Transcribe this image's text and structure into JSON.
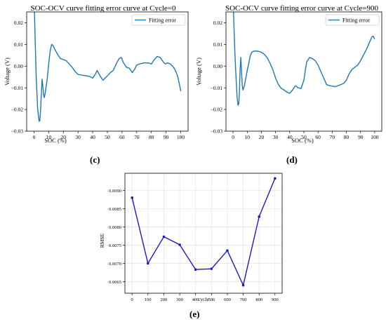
{
  "panels": {
    "c": "(c)",
    "d": "(d)",
    "e": "(e)"
  },
  "chart_data": [
    {
      "id": "c",
      "type": "line",
      "title": "SOC-OCV curve fitting error curve at Cycle=0",
      "xlabel": "SOC (%)",
      "ylabel": "Voltage (V)",
      "xlim": [
        -5,
        105
      ],
      "ylim": [
        -0.03,
        0.025
      ],
      "xticks": [
        0,
        10,
        20,
        30,
        40,
        50,
        60,
        70,
        80,
        90,
        100
      ],
      "yticks": [
        -0.03,
        -0.02,
        -0.01,
        0.0,
        0.01,
        0.02
      ],
      "ytick_labels": [
        "−0.03",
        "−0.02",
        "−0.01",
        "0.00",
        "0.01",
        "0.02"
      ],
      "grid": false,
      "legend": "top-right",
      "color": "#1f77b4",
      "series": [
        {
          "name": "Fitting error",
          "x": [
            0.3,
            0.8,
            1.5,
            2.5,
            3.5,
            4.0,
            4.5,
            5.0,
            5.5,
            6.0,
            6.5,
            7.0,
            7.5,
            8.0,
            9.0,
            10.0,
            11.0,
            12.0,
            13.0,
            14.0,
            16.0,
            18.0,
            20.0,
            22.0,
            24.0,
            26.0,
            28.0,
            30.0,
            33.0,
            36.0,
            38.0,
            40.0,
            42.0,
            43.0,
            45.0,
            47.0,
            50.0,
            52.0,
            54.0,
            56.0,
            58.0,
            59.5,
            61.0,
            63.0,
            65.0,
            67.0,
            68.5,
            70.0,
            72.0,
            75.0,
            78.0,
            80.0,
            82.0,
            84.0,
            86.0,
            88.0,
            89.5,
            91.0,
            93.0,
            95.0,
            96.0,
            97.0,
            98.0,
            99.0,
            100.0
          ],
          "y": [
            0.025,
            0.012,
            -0.005,
            -0.02,
            -0.0255,
            -0.025,
            -0.02,
            -0.013,
            -0.006,
            -0.009,
            -0.013,
            -0.0145,
            -0.013,
            -0.0105,
            -0.006,
            0.001,
            0.007,
            0.01,
            0.0095,
            0.008,
            0.0055,
            0.0035,
            0.003,
            0.0025,
            0.001,
            -0.0005,
            -0.0025,
            -0.0038,
            -0.0042,
            -0.0045,
            -0.0048,
            -0.0055,
            -0.0035,
            -0.002,
            -0.0045,
            -0.0065,
            -0.0045,
            -0.003,
            -0.002,
            0.001,
            0.0035,
            0.004,
            0.0015,
            -0.0005,
            -0.001,
            -0.003,
            -0.0015,
            0.0005,
            0.001,
            0.0015,
            0.0015,
            0.001,
            0.003,
            0.0045,
            0.004,
            0.002,
            0.001,
            0.0015,
            0.001,
            -0.0005,
            -0.0015,
            -0.003,
            -0.005,
            -0.008,
            -0.0115
          ]
        }
      ]
    },
    {
      "id": "d",
      "type": "line",
      "title": "SOC-OCV curve fitting error curve at Cycle=900",
      "xlabel": "SOC (%)",
      "ylabel": "Voltage (V)",
      "xlim": [
        -5,
        105
      ],
      "ylim": [
        -0.03,
        0.025
      ],
      "xticks": [
        0,
        10,
        20,
        30,
        40,
        50,
        60,
        70,
        80,
        90,
        100
      ],
      "yticks": [
        -0.03,
        -0.02,
        -0.01,
        0.0,
        0.01,
        0.02
      ],
      "ytick_labels": [
        "−0.03",
        "−0.02",
        "−0.01",
        "0.00",
        "0.01",
        "0.02"
      ],
      "grid": false,
      "legend": "top-right",
      "color": "#1f77b4",
      "series": [
        {
          "name": "Fitting error",
          "x": [
            0.3,
            0.8,
            1.3,
            2.0,
            2.8,
            3.5,
            4.0,
            4.5,
            5.0,
            5.5,
            6.0,
            6.5,
            7.0,
            8.0,
            9.0,
            10.0,
            11.0,
            12.0,
            13.0,
            14.0,
            16.0,
            18.0,
            20.0,
            22.0,
            24.0,
            26.0,
            28.0,
            30.0,
            32.0,
            34.0,
            36.0,
            38.0,
            40.0,
            42.0,
            44.0,
            46.0,
            48.0,
            50.0,
            51.0,
            52.0,
            54.0,
            55.0,
            56.0,
            58.0,
            60.0,
            62.0,
            64.0,
            66.0,
            68.0,
            70.0,
            72.0,
            75.0,
            78.0,
            80.0,
            82.0,
            84.0,
            86.0,
            88.0,
            90.0,
            92.0,
            94.0,
            96.0,
            98.0,
            99.0,
            100.0
          ],
          "y": [
            0.025,
            0.015,
            0.006,
            -0.004,
            -0.014,
            -0.018,
            -0.0175,
            -0.012,
            -0.001,
            0.004,
            -0.003,
            -0.009,
            -0.011,
            -0.009,
            -0.0055,
            -0.002,
            0.001,
            0.0045,
            0.0062,
            0.0068,
            0.007,
            0.0068,
            0.0064,
            0.0055,
            0.004,
            0.0015,
            -0.0015,
            -0.0055,
            -0.0085,
            -0.0102,
            -0.011,
            -0.012,
            -0.0125,
            -0.011,
            -0.009,
            -0.01,
            -0.0103,
            -0.0065,
            -0.002,
            0.002,
            0.004,
            0.0038,
            0.0035,
            0.0025,
            0.0005,
            -0.0025,
            -0.0055,
            -0.0085,
            -0.009,
            -0.0092,
            -0.0095,
            -0.0088,
            -0.008,
            -0.0065,
            -0.0035,
            -0.0015,
            -0.0005,
            0.0005,
            0.0025,
            0.005,
            0.0075,
            0.0105,
            0.0135,
            0.0138,
            0.0125
          ]
        }
      ]
    },
    {
      "id": "e",
      "type": "line",
      "title": "",
      "xlabel": "cycle",
      "ylabel": "RMSE",
      "xlim": [
        -45,
        945
      ],
      "ylim": [
        0.00618,
        0.00947
      ],
      "xticks": [
        0,
        100,
        200,
        300,
        400,
        500,
        600,
        700,
        800,
        900
      ],
      "yticks": [
        0.0065,
        0.007,
        0.0075,
        0.008,
        0.0085,
        0.009
      ],
      "ytick_labels": [
        "0.0065",
        "0.0070",
        "0.0075",
        "0.0080",
        "0.0085",
        "0.0090"
      ],
      "grid": true,
      "legend": "none",
      "color": "#1a1acc",
      "markers": true,
      "series": [
        {
          "x": [
            0,
            100,
            200,
            300,
            400,
            500,
            600,
            700,
            800,
            900
          ],
          "y": [
            0.0088,
            0.007,
            0.00773,
            0.00751,
            0.00683,
            0.00685,
            0.00735,
            0.0064,
            0.00828,
            0.00933
          ]
        }
      ]
    }
  ]
}
